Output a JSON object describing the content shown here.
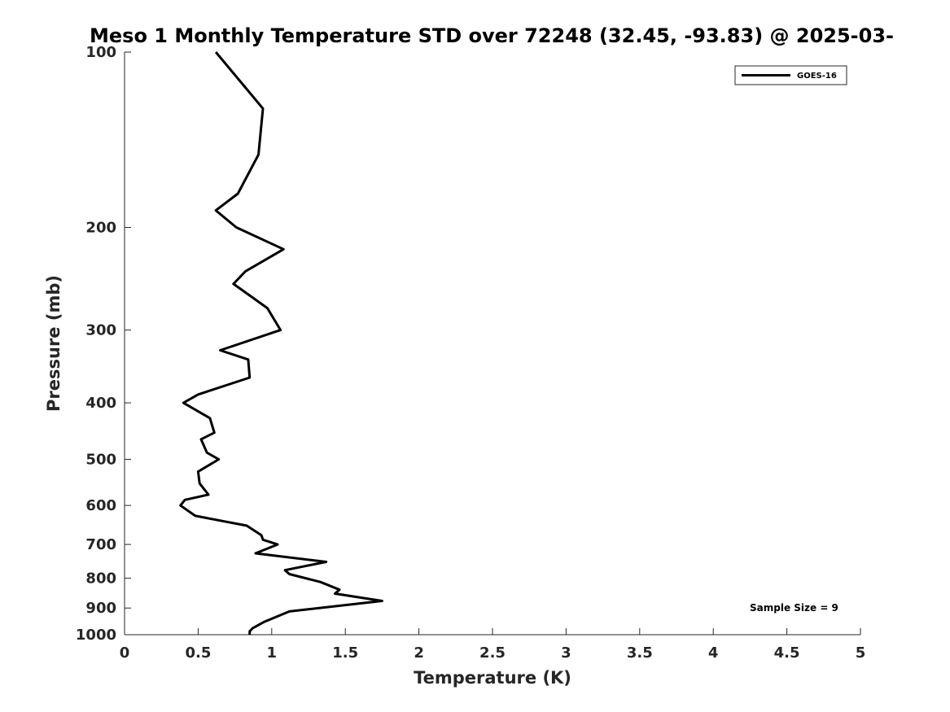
{
  "chart_data": {
    "type": "line",
    "title": "Meso 1 Monthly Temperature STD over 72248 (32.45, -93.83) @ 2025-03-",
    "xlabel": "Temperature (K)",
    "ylabel": "Pressure (mb)",
    "xlim": [
      0,
      5
    ],
    "ylim": [
      100,
      1000
    ],
    "y_scale": "log",
    "y_inverted": true,
    "grid": false,
    "legend_position": "top-right",
    "x_ticks": [
      "0",
      "0.5",
      "1",
      "1.5",
      "2",
      "2.5",
      "3",
      "3.5",
      "4",
      "4.5",
      "5"
    ],
    "y_ticks": [
      "100",
      "200",
      "300",
      "400",
      "500",
      "600",
      "700",
      "800",
      "900",
      "1000"
    ],
    "annotation": "Sample Size = 9",
    "series": [
      {
        "name": "GOES-16",
        "color": "#000000",
        "points": [
          [
            0.62,
            100
          ],
          [
            0.94,
            125
          ],
          [
            0.91,
            150
          ],
          [
            0.77,
            175
          ],
          [
            0.62,
            187
          ],
          [
            0.76,
            200
          ],
          [
            1.08,
            218
          ],
          [
            0.82,
            238
          ],
          [
            0.74,
            250
          ],
          [
            0.97,
            275
          ],
          [
            1.06,
            300
          ],
          [
            0.65,
            325
          ],
          [
            0.84,
            337
          ],
          [
            0.85,
            362
          ],
          [
            0.5,
            387
          ],
          [
            0.4,
            400
          ],
          [
            0.58,
            425
          ],
          [
            0.61,
            450
          ],
          [
            0.52,
            462
          ],
          [
            0.56,
            487
          ],
          [
            0.64,
            500
          ],
          [
            0.5,
            525
          ],
          [
            0.51,
            550
          ],
          [
            0.57,
            575
          ],
          [
            0.41,
            587
          ],
          [
            0.38,
            600
          ],
          [
            0.48,
            625
          ],
          [
            0.83,
            650
          ],
          [
            0.93,
            675
          ],
          [
            0.94,
            687
          ],
          [
            1.04,
            700
          ],
          [
            0.89,
            725
          ],
          [
            1.37,
            750
          ],
          [
            1.09,
            775
          ],
          [
            1.12,
            787
          ],
          [
            1.33,
            812
          ],
          [
            1.46,
            837
          ],
          [
            1.43,
            850
          ],
          [
            1.75,
            875
          ],
          [
            1.12,
            912
          ],
          [
            0.95,
            950
          ],
          [
            0.87,
            975
          ],
          [
            0.85,
            987
          ],
          [
            0.85,
            1000
          ]
        ]
      }
    ]
  }
}
